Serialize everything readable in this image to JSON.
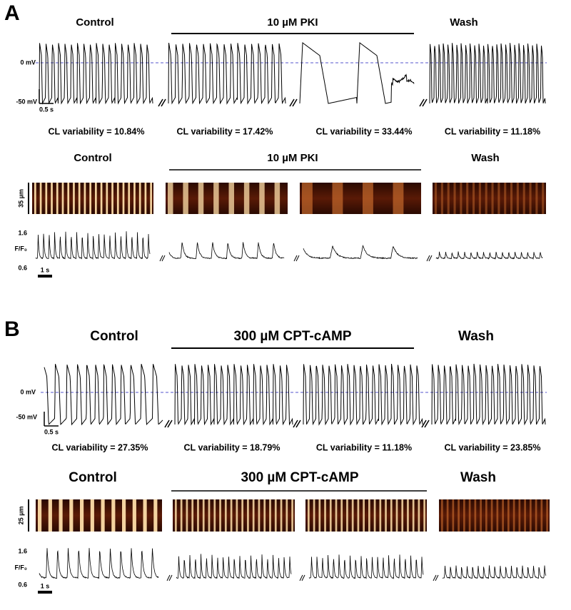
{
  "panels": [
    {
      "label": "A",
      "ap": {
        "headers": [
          "Control",
          "10 µM PKI",
          "Wash"
        ],
        "voltage_labels": [
          "0 mV",
          "-50 mV"
        ],
        "time_scale": "0.5 s",
        "cl_variability": [
          "CL variability = 10.84%",
          "CL variability = 17.42%",
          "CL variability = 33.44%",
          "CL variability = 11.18%"
        ]
      },
      "ca": {
        "headers": [
          "Control",
          "10 µM PKI",
          "Wash"
        ],
        "space_scale": "35 µm",
        "f_labels": [
          "1.6",
          "F/F₀",
          "0.6"
        ],
        "time_scale": "1 s"
      }
    },
    {
      "label": "B",
      "ap": {
        "headers": [
          "Control",
          "300 µM CPT-cAMP",
          "Wash"
        ],
        "voltage_labels": [
          "0 mV",
          "-50 mV"
        ],
        "time_scale": "0.5 s",
        "cl_variability": [
          "CL variability = 27.35%",
          "CL variability = 18.79%",
          "CL variability = 11.18%",
          "CL variability = 23.85%"
        ]
      },
      "ca": {
        "headers": [
          "Control",
          "300 µM CPT-cAMP",
          "Wash"
        ],
        "space_scale": "25 µm",
        "f_labels": [
          "1.6",
          "F/F₀",
          "0.6"
        ],
        "time_scale": "1 s"
      }
    }
  ]
}
